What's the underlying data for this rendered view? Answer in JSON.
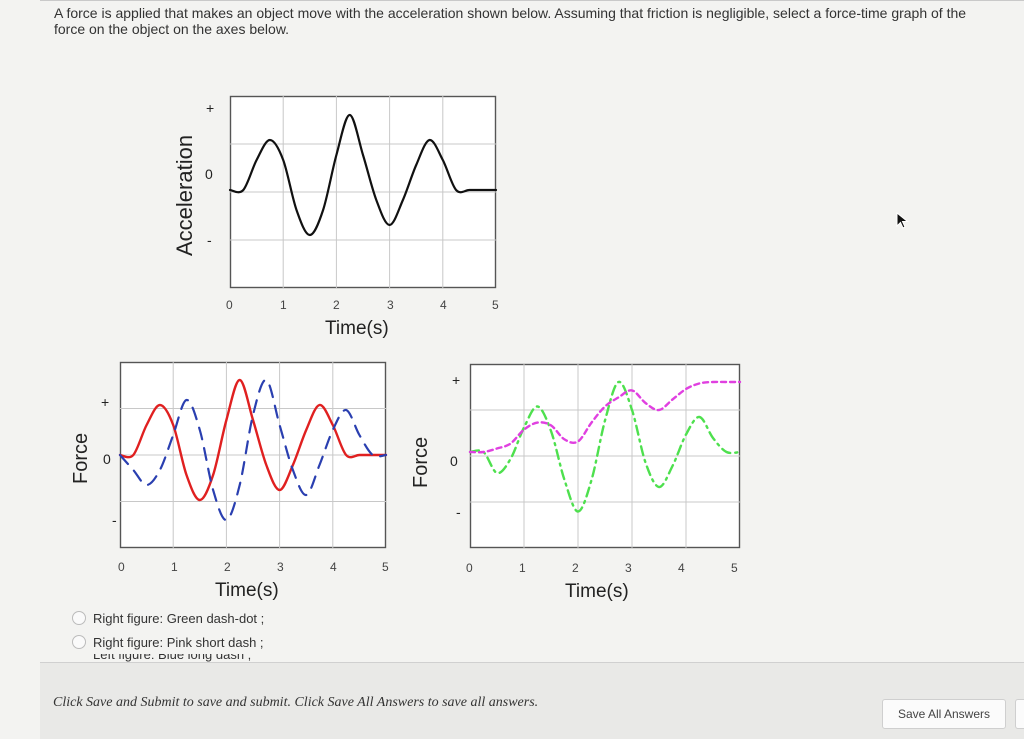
{
  "question": {
    "text": "A force is applied that makes an object move with the acceleration shown below. Assuming that friction is negligible, select a force-time graph of the force on the object on the axes below."
  },
  "top_plot": {
    "ylabel": "Acceleration",
    "yticks": [
      "+",
      "0",
      "-"
    ],
    "xticks": [
      "0",
      "1",
      "2",
      "3",
      "4",
      "5"
    ],
    "xlabel": "Time(s)"
  },
  "left_plot": {
    "ylabel": "Force",
    "yticks": [
      "+",
      "0",
      "-"
    ],
    "xticks": [
      "0",
      "1",
      "2",
      "3",
      "4",
      "5"
    ],
    "xlabel": "Time(s)"
  },
  "right_plot": {
    "ylabel": "Force",
    "yticks": [
      "+",
      "0",
      "-"
    ],
    "xticks": [
      "0",
      "1",
      "2",
      "3",
      "4",
      "5"
    ],
    "xlabel": "Time(s)"
  },
  "options": [
    {
      "label": "Right figure: Green dash-dot ;"
    },
    {
      "label": "Right figure: Pink short dash ;"
    },
    {
      "label": "Left figure: Blue long dash ;"
    }
  ],
  "footer": {
    "instructions": "Click Save and Submit to save and submit. Click Save All Answers to save all answers.",
    "save_all_label": "Save All Answers"
  },
  "colors": {
    "acceleration": "#111111",
    "red_solid": "#e02020",
    "blue_long_dash": "#2a3fb0",
    "green_dash_dot": "#4ee04e",
    "pink_short_dash": "#e040e0",
    "grid": "#c8c8c8"
  },
  "chart_data": [
    {
      "type": "line",
      "xlabel": "Time(s)",
      "ylabel": "Acceleration",
      "xlim": [
        0,
        5
      ],
      "grid": true,
      "series": [
        {
          "x": [
            0,
            0.25,
            0.5,
            0.75,
            1,
            1.25,
            1.5,
            1.75,
            2,
            2.25,
            2.5,
            2.75,
            3,
            3.25,
            3.5,
            3.75,
            4,
            4.25,
            4.5,
            4.75,
            5
          ],
          "y": [
            0,
            0,
            0.3,
            0.5,
            0.3,
            -0.2,
            -0.45,
            -0.2,
            0.35,
            0.75,
            0.35,
            -0.1,
            -0.35,
            -0.1,
            0.25,
            0.5,
            0.3,
            0,
            0,
            0,
            0
          ]
        }
      ]
    },
    {
      "type": "line",
      "xlabel": "Time(s)",
      "ylabel": "Force",
      "xlim": [
        0,
        5
      ],
      "grid": true,
      "series": [
        {
          "x": [
            0,
            0.25,
            0.5,
            0.75,
            1,
            1.25,
            1.5,
            1.75,
            2,
            2.25,
            2.5,
            2.75,
            3,
            3.25,
            3.5,
            3.75,
            4,
            4.25,
            4.5,
            4.75,
            5
          ],
          "y": [
            0,
            0,
            0.3,
            0.5,
            0.3,
            -0.2,
            -0.45,
            -0.2,
            0.35,
            0.75,
            0.35,
            -0.1,
            -0.35,
            -0.1,
            0.25,
            0.5,
            0.3,
            0,
            0,
            0,
            0
          ]
        },
        {
          "x": [
            0,
            0.25,
            0.5,
            0.75,
            1,
            1.25,
            1.5,
            1.75,
            2,
            2.25,
            2.5,
            2.75,
            3,
            3.25,
            3.5,
            3.75,
            4,
            4.25,
            4.5,
            4.75,
            5
          ],
          "y": [
            0,
            -0.15,
            -0.3,
            -0.15,
            0.2,
            0.55,
            0.25,
            -0.35,
            -0.65,
            -0.3,
            0.4,
            0.75,
            0.3,
            -0.15,
            -0.4,
            -0.1,
            0.25,
            0.45,
            0.2,
            0,
            0
          ]
        }
      ]
    },
    {
      "type": "line",
      "xlabel": "Time(s)",
      "ylabel": "Force",
      "xlim": [
        0,
        5
      ],
      "grid": true,
      "series": [
        {
          "x": [
            0,
            0.25,
            0.5,
            0.75,
            1,
            1.25,
            1.5,
            1.75,
            2,
            2.25,
            2.5,
            2.75,
            3,
            3.25,
            3.5,
            3.75,
            4,
            4.25,
            4.5,
            4.75,
            5
          ],
          "y": [
            0,
            0,
            -0.3,
            -0.1,
            0.35,
            0.65,
            0.3,
            -0.4,
            -0.85,
            -0.4,
            0.45,
            1.0,
            0.6,
            -0.15,
            -0.5,
            -0.2,
            0.25,
            0.5,
            0.2,
            0,
            0
          ]
        },
        {
          "x": [
            0,
            0.25,
            0.5,
            0.75,
            1,
            1.25,
            1.5,
            1.75,
            2,
            2.25,
            2.5,
            2.75,
            3,
            3.25,
            3.5,
            3.75,
            4,
            4.25,
            4.5,
            4.75,
            5
          ],
          "y": [
            0,
            0,
            0.05,
            0.12,
            0.32,
            0.42,
            0.38,
            0.18,
            0.15,
            0.42,
            0.65,
            0.78,
            0.88,
            0.7,
            0.6,
            0.75,
            0.9,
            0.98,
            1.0,
            1.0,
            1.0
          ]
        }
      ]
    }
  ]
}
